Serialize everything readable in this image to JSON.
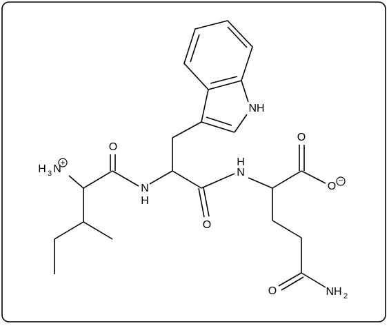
{
  "atoms": [
    {
      "h": "H",
      "sub": "3",
      "main": "N",
      "charge": "+"
    },
    {
      "main": "O"
    },
    {
      "main": "N",
      "h": "H"
    },
    {
      "main": "O"
    },
    {
      "h": "H",
      "main": "N"
    },
    {
      "main": "NH"
    },
    {
      "main": "O"
    },
    {
      "main": "O",
      "charge": "−"
    },
    {
      "main": "O"
    },
    {
      "main": "NH",
      "sub": "2"
    }
  ]
}
